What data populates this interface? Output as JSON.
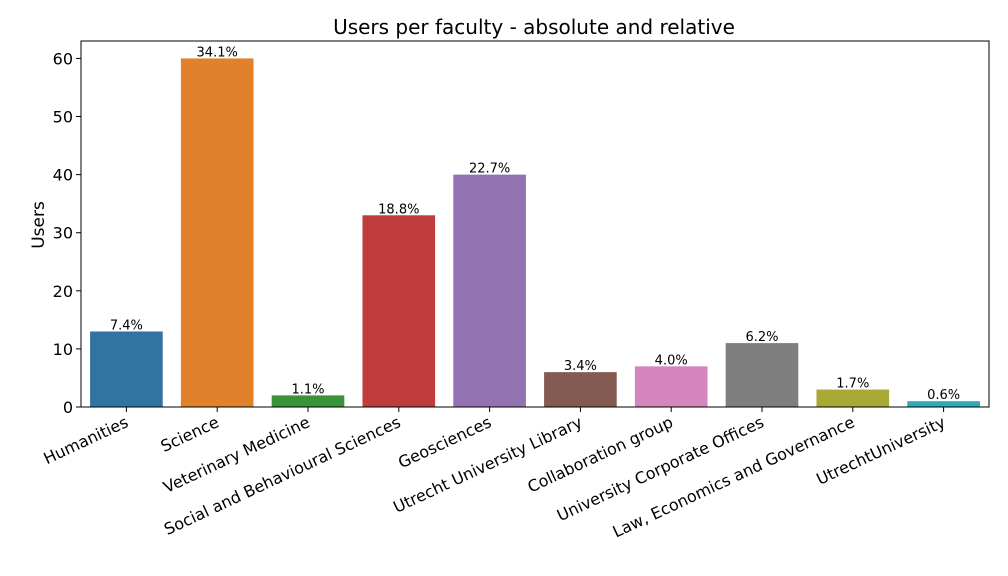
{
  "chart_data": {
    "type": "bar",
    "title": "Users per faculty - absolute and relative",
    "xlabel": "",
    "ylabel": "Users",
    "ylim": [
      0,
      63
    ],
    "yticks": [
      0,
      10,
      20,
      30,
      40,
      50,
      60
    ],
    "grid": false,
    "legend": "none",
    "categories": [
      "Humanities",
      "Science",
      "Veterinary Medicine",
      "Social and Behavioural Sciences",
      "Geosciences",
      "Utrecht University Library",
      "Collaboration group",
      "University Corporate Offices",
      "Law, Economics and Governance",
      "UtrechtUniversity"
    ],
    "values": [
      13,
      60,
      2,
      33,
      40,
      6,
      7,
      11,
      3,
      1
    ],
    "labels": [
      "7.4%",
      "34.1%",
      "1.1%",
      "18.8%",
      "22.7%",
      "3.4%",
      "4.0%",
      "6.2%",
      "1.7%",
      "0.6%"
    ],
    "colors": [
      "#3274a1",
      "#e1812c",
      "#3a923a",
      "#c03d3e",
      "#9372b2",
      "#845b53",
      "#d684bd",
      "#7f7f7f",
      "#a9aa35",
      "#2eabb8"
    ]
  }
}
